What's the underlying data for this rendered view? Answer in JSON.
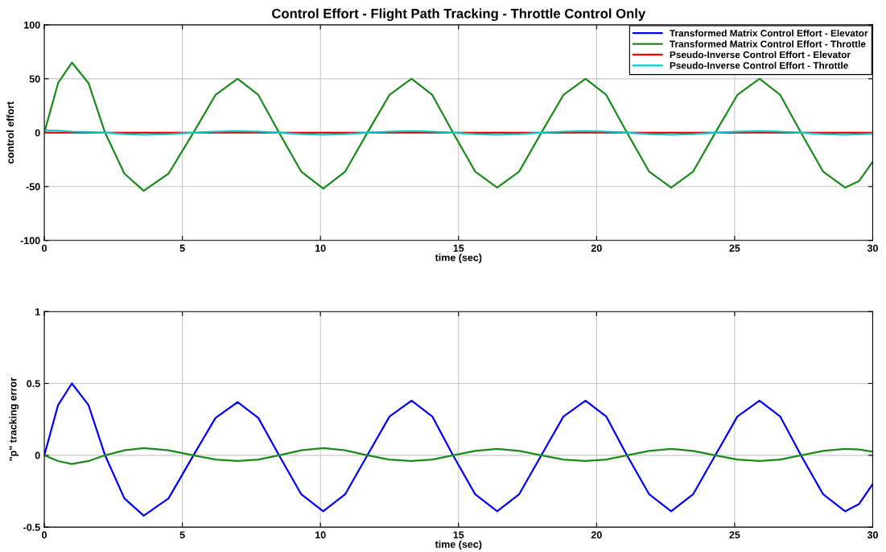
{
  "chart_data": [
    {
      "type": "line",
      "title": "Control Effort - Flight Path Tracking - Throttle Control Only",
      "xlabel": "time (sec)",
      "ylabel": "control effort",
      "x": [
        0,
        0.5,
        1.0,
        1.6,
        2.2,
        2.9,
        3.6,
        4.5,
        5.4,
        6.2,
        7.0,
        7.75,
        8.5,
        9.3,
        10.1,
        10.9,
        11.7,
        12.5,
        13.3,
        14.05,
        14.8,
        15.6,
        16.4,
        17.2,
        18.0,
        18.8,
        19.6,
        20.35,
        21.1,
        21.9,
        22.7,
        23.5,
        24.3,
        25.1,
        25.9,
        26.65,
        27.4,
        28.2,
        29.0,
        29.5,
        30
      ],
      "series": [
        {
          "name": "Transformed Matrix Control Effort - Elevator",
          "color": "#0000ff",
          "values": [
            null,
            null,
            null,
            null,
            null,
            null,
            null,
            null,
            null,
            null,
            null,
            null,
            null,
            null,
            null,
            null,
            null,
            null,
            null,
            null,
            null,
            null,
            null,
            null,
            null,
            null,
            null,
            null,
            null,
            null,
            null,
            null,
            null,
            null,
            null,
            null,
            null,
            null,
            null,
            null,
            null
          ]
        },
        {
          "name": "Transformed Matrix Control Effort - Throttle",
          "color": "#1a8a1a",
          "values": [
            0,
            46,
            65,
            46,
            0,
            -38,
            -54,
            -38,
            0,
            35,
            50,
            35,
            0,
            -36,
            -52,
            -36,
            0,
            35,
            50,
            35,
            0,
            -36,
            -51,
            -36,
            0,
            35,
            50,
            35,
            0,
            -36,
            -51,
            -36,
            0,
            35,
            50,
            35,
            0,
            -36,
            -51,
            -45,
            -27
          ]
        },
        {
          "name": "Pseudo-Inverse Control Effort - Elevator",
          "color": "#ff0000",
          "values": [
            0,
            0,
            0,
            0,
            0,
            0,
            0,
            0,
            0,
            0,
            0,
            0,
            0,
            0,
            0,
            0,
            0,
            0,
            0,
            0,
            0,
            0,
            0,
            0,
            0,
            0,
            0,
            0,
            0,
            0,
            0,
            0,
            0,
            0,
            0,
            0,
            0,
            0,
            0,
            0,
            0
          ]
        },
        {
          "name": "Pseudo-Inverse Control Effort - Throttle",
          "color": "#00cccc",
          "values": [
            2,
            1.8,
            1,
            0.6,
            0,
            -1.4,
            -2,
            -1.4,
            0,
            1,
            1.5,
            1,
            0,
            -1.4,
            -2,
            -1.4,
            0,
            1,
            1.5,
            1,
            0,
            -1.4,
            -2,
            -1.4,
            0,
            1,
            1.5,
            1,
            0,
            -1.4,
            -2,
            -1.4,
            0,
            1,
            1.5,
            1,
            0,
            -1.4,
            -2,
            -1.6,
            -1
          ]
        }
      ],
      "xlim": [
        0,
        30
      ],
      "xticks": [
        0,
        5,
        10,
        15,
        20,
        25,
        30
      ],
      "ylim": [
        -100,
        100
      ],
      "yticks": [
        -100,
        -50,
        0,
        50,
        100
      ],
      "grid": true,
      "legend": "top right"
    },
    {
      "type": "line",
      "xlabel": "time (sec)",
      "ylabel": "\"p\" tracking error",
      "x": [
        0,
        0.5,
        1.0,
        1.6,
        2.2,
        2.9,
        3.6,
        4.5,
        5.4,
        6.2,
        7.0,
        7.75,
        8.5,
        9.3,
        10.1,
        10.9,
        11.7,
        12.5,
        13.3,
        14.05,
        14.8,
        15.6,
        16.4,
        17.2,
        18.0,
        18.8,
        19.6,
        20.35,
        21.1,
        21.9,
        22.7,
        23.5,
        24.3,
        25.1,
        25.9,
        26.65,
        27.4,
        28.2,
        29.0,
        29.5,
        30
      ],
      "series": [
        {
          "color": "#0000ff",
          "values": [
            0,
            0.35,
            0.5,
            0.35,
            0,
            -0.3,
            -0.42,
            -0.3,
            0,
            0.26,
            0.37,
            0.26,
            0,
            -0.27,
            -0.39,
            -0.27,
            0,
            0.27,
            0.38,
            0.27,
            0,
            -0.27,
            -0.39,
            -0.27,
            0,
            0.27,
            0.38,
            0.27,
            0,
            -0.27,
            -0.39,
            -0.27,
            0,
            0.27,
            0.38,
            0.27,
            0,
            -0.27,
            -0.39,
            -0.34,
            -0.2
          ]
        },
        {
          "color": "#1a8a1a",
          "values": [
            0,
            -0.04,
            -0.06,
            -0.04,
            0,
            0.035,
            0.05,
            0.035,
            0,
            -0.03,
            -0.04,
            -0.03,
            0,
            0.035,
            0.05,
            0.035,
            0,
            -0.03,
            -0.04,
            -0.03,
            0,
            0.03,
            0.045,
            0.03,
            0,
            -0.03,
            -0.04,
            -0.03,
            0,
            0.03,
            0.045,
            0.03,
            0,
            -0.03,
            -0.04,
            -0.03,
            0,
            0.03,
            0.045,
            0.04,
            0.025
          ]
        }
      ],
      "xlim": [
        0,
        30
      ],
      "xticks": [
        0,
        5,
        10,
        15,
        20,
        25,
        30
      ],
      "ylim": [
        -0.5,
        1
      ],
      "yticks": [
        -0.5,
        0,
        0.5,
        1
      ],
      "grid": true
    }
  ]
}
